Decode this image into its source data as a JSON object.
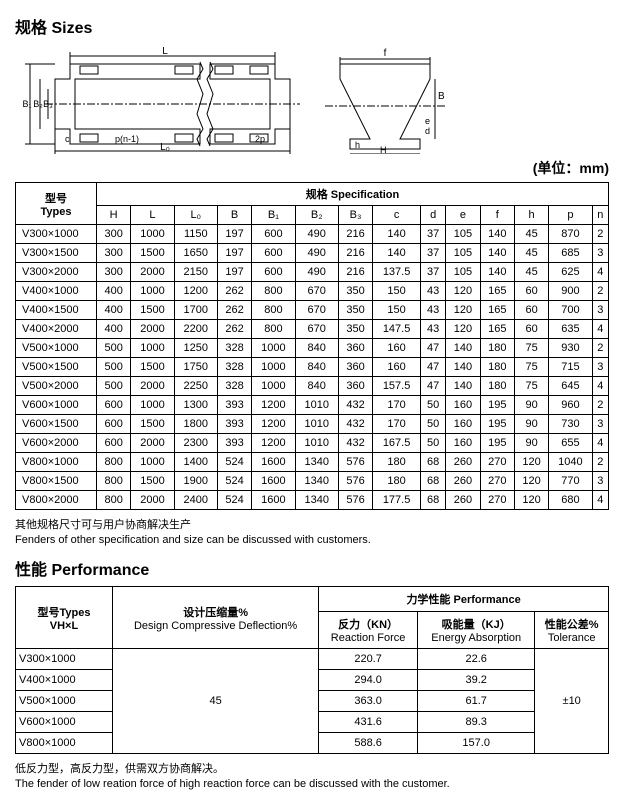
{
  "page": {
    "sizes_title": "规格 Sizes",
    "unit_note": "(单位：mm)",
    "spec_footnote_cn": "其他规格尺寸可与用户协商解决生产",
    "spec_footnote_en": "Fenders of other specification and size can be discussed with customers.",
    "perf_title": "性能 Performance",
    "perf_footnote_cn": "低反力型，高反力型，供需双方协商解决。",
    "perf_footnote_en": "The fender of low reation force of high reaction force can be discussed with the customer."
  },
  "spec_table": {
    "head_types_cn": "型号",
    "head_types_en": "Types",
    "head_spec": "规格  Specification",
    "cols": [
      "H",
      "L",
      "L₀",
      "B",
      "B₁",
      "B₂",
      "B₃",
      "c",
      "d",
      "e",
      "f",
      "h",
      "p",
      "n"
    ],
    "rows": [
      {
        "type": "V300×1000",
        "v": [
          "300",
          "1000",
          "1150",
          "197",
          "600",
          "490",
          "216",
          "140",
          "37",
          "105",
          "140",
          "45",
          "870",
          "2"
        ]
      },
      {
        "type": "V300×1500",
        "v": [
          "300",
          "1500",
          "1650",
          "197",
          "600",
          "490",
          "216",
          "140",
          "37",
          "105",
          "140",
          "45",
          "685",
          "3"
        ]
      },
      {
        "type": "V300×2000",
        "v": [
          "300",
          "2000",
          "2150",
          "197",
          "600",
          "490",
          "216",
          "137.5",
          "37",
          "105",
          "140",
          "45",
          "625",
          "4"
        ]
      },
      {
        "type": "V400×1000",
        "v": [
          "400",
          "1000",
          "1200",
          "262",
          "800",
          "670",
          "350",
          "150",
          "43",
          "120",
          "165",
          "60",
          "900",
          "2"
        ]
      },
      {
        "type": "V400×1500",
        "v": [
          "400",
          "1500",
          "1700",
          "262",
          "800",
          "670",
          "350",
          "150",
          "43",
          "120",
          "165",
          "60",
          "700",
          "3"
        ]
      },
      {
        "type": "V400×2000",
        "v": [
          "400",
          "2000",
          "2200",
          "262",
          "800",
          "670",
          "350",
          "147.5",
          "43",
          "120",
          "165",
          "60",
          "635",
          "4"
        ]
      },
      {
        "type": "V500×1000",
        "v": [
          "500",
          "1000",
          "1250",
          "328",
          "1000",
          "840",
          "360",
          "160",
          "47",
          "140",
          "180",
          "75",
          "930",
          "2"
        ]
      },
      {
        "type": "V500×1500",
        "v": [
          "500",
          "1500",
          "1750",
          "328",
          "1000",
          "840",
          "360",
          "160",
          "47",
          "140",
          "180",
          "75",
          "715",
          "3"
        ]
      },
      {
        "type": "V500×2000",
        "v": [
          "500",
          "2000",
          "2250",
          "328",
          "1000",
          "840",
          "360",
          "157.5",
          "47",
          "140",
          "180",
          "75",
          "645",
          "4"
        ]
      },
      {
        "type": "V600×1000",
        "v": [
          "600",
          "1000",
          "1300",
          "393",
          "1200",
          "1010",
          "432",
          "170",
          "50",
          "160",
          "195",
          "90",
          "960",
          "2"
        ]
      },
      {
        "type": "V600×1500",
        "v": [
          "600",
          "1500",
          "1800",
          "393",
          "1200",
          "1010",
          "432",
          "170",
          "50",
          "160",
          "195",
          "90",
          "730",
          "3"
        ]
      },
      {
        "type": "V600×2000",
        "v": [
          "600",
          "2000",
          "2300",
          "393",
          "1200",
          "1010",
          "432",
          "167.5",
          "50",
          "160",
          "195",
          "90",
          "655",
          "4"
        ]
      },
      {
        "type": "V800×1000",
        "v": [
          "800",
          "1000",
          "1400",
          "524",
          "1600",
          "1340",
          "576",
          "180",
          "68",
          "260",
          "270",
          "120",
          "1040",
          "2"
        ]
      },
      {
        "type": "V800×1500",
        "v": [
          "800",
          "1500",
          "1900",
          "524",
          "1600",
          "1340",
          "576",
          "180",
          "68",
          "260",
          "270",
          "120",
          "770",
          "3"
        ]
      },
      {
        "type": "V800×2000",
        "v": [
          "800",
          "2000",
          "2400",
          "524",
          "1600",
          "1340",
          "576",
          "177.5",
          "68",
          "260",
          "270",
          "120",
          "680",
          "4"
        ]
      }
    ]
  },
  "perf_table": {
    "head_types_cn": "型号Types",
    "head_types_en": "VH×L",
    "head_perf": "力学性能 Performance",
    "col_deflection_cn": "设计压缩量%",
    "col_deflection_en": "Design Compressive Deflection%",
    "col_reaction_cn": "反力（KN）",
    "col_reaction_en": "Reaction Force",
    "col_energy_cn": "吸能量（KJ）",
    "col_energy_en": "Energy Absorption",
    "col_tol_cn": "性能公差%",
    "col_tol_en": "Tolerance",
    "deflection_val": "45",
    "tolerance_val": "±10",
    "rows": [
      {
        "type": "V300×1000",
        "rf": "220.7",
        "ea": "22.6"
      },
      {
        "type": "V400×1000",
        "rf": "294.0",
        "ea": "39.2"
      },
      {
        "type": "V500×1000",
        "rf": "363.0",
        "ea": "61.7"
      },
      {
        "type": "V600×1000",
        "rf": "431.6",
        "ea": "89.3"
      },
      {
        "type": "V800×1000",
        "rf": "588.6",
        "ea": "157.0"
      }
    ]
  },
  "diagram": {
    "labels": {
      "L": "L",
      "L0": "L₀",
      "B1": "B₁",
      "B2": "B₂",
      "B3": "B₃",
      "B": "B",
      "H": "H",
      "h": "h",
      "d": "d",
      "e": "e",
      "c": "c",
      "f": "f",
      "p": "2p",
      "pn": "p(n-1)"
    }
  }
}
